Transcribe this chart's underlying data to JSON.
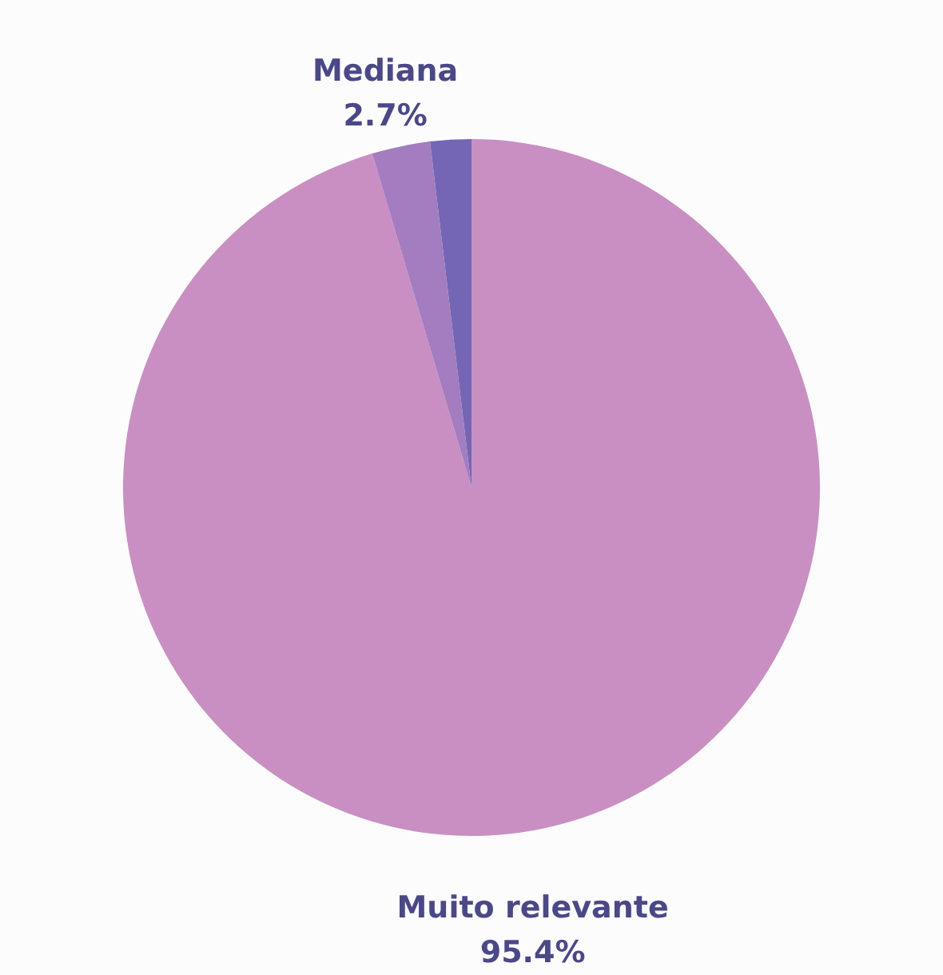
{
  "chart_data": {
    "type": "pie",
    "categories": [
      "Muito relevante",
      "Mediana",
      null
    ],
    "values": [
      95.4,
      2.7,
      1.9
    ],
    "value_labels": [
      "95.4%",
      "2.7%",
      null
    ],
    "colors": [
      "#c98fc2",
      "#a37dbf",
      "#7466b5"
    ]
  }
}
